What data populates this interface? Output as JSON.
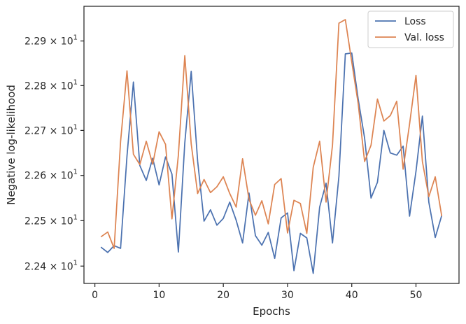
{
  "chart_data": {
    "type": "line",
    "xlabel": "Epochs",
    "ylabel": "Negative log-likelihood",
    "y_scale": "log",
    "xlim": [
      -1.7,
      56.7
    ],
    "ylim": [
      2.2362,
      2.2978
    ],
    "x_ticks": [
      0,
      10,
      20,
      30,
      40,
      50
    ],
    "x_tick_labels": [
      "0",
      "10",
      "20",
      "30",
      "40",
      "50"
    ],
    "y_ticks": [
      2.24,
      2.25,
      2.26,
      2.27,
      2.28,
      2.29
    ],
    "y_tick_mantissas": [
      "2.24",
      "2.25",
      "2.26",
      "2.27",
      "2.28",
      "2.29"
    ],
    "y_tick_base": "10",
    "y_tick_exp": "1",
    "grid": false,
    "legend_position": "top-right",
    "x": [
      1,
      2,
      3,
      4,
      5,
      6,
      7,
      8,
      9,
      10,
      11,
      12,
      13,
      14,
      15,
      16,
      17,
      18,
      19,
      20,
      21,
      22,
      23,
      24,
      25,
      26,
      27,
      28,
      29,
      30,
      31,
      32,
      33,
      34,
      35,
      36,
      37,
      38,
      39,
      40,
      41,
      42,
      43,
      44,
      45,
      46,
      47,
      48,
      49,
      50,
      51,
      52,
      53,
      54
    ],
    "series": [
      {
        "name": "Loss",
        "color": "#4c72b0",
        "values": [
          2.2441,
          2.243,
          2.2445,
          2.2439,
          2.2643,
          2.2808,
          2.2622,
          2.2589,
          2.2638,
          2.2579,
          2.2641,
          2.2603,
          2.2431,
          2.2672,
          2.2832,
          2.2632,
          2.2499,
          2.2524,
          2.249,
          2.2505,
          2.2541,
          2.2501,
          2.2451,
          2.2561,
          2.2467,
          2.2446,
          2.2474,
          2.2417,
          2.2506,
          2.2517,
          2.239,
          2.2472,
          2.2462,
          2.2384,
          2.253,
          2.2583,
          2.2451,
          2.2598,
          2.2871,
          2.2873,
          2.277,
          2.2683,
          2.255,
          2.2585,
          2.27,
          2.265,
          2.2645,
          2.2665,
          2.251,
          2.2609,
          2.2732,
          2.2541,
          2.2463,
          2.2511
        ]
      },
      {
        "name": "Val. loss",
        "color": "#dd8452",
        "values": [
          2.2465,
          2.2475,
          2.2439,
          2.2675,
          2.2833,
          2.2647,
          2.2624,
          2.2676,
          2.2625,
          2.2697,
          2.2669,
          2.2504,
          2.2645,
          2.2867,
          2.267,
          2.256,
          2.2591,
          2.2562,
          2.2575,
          2.2597,
          2.256,
          2.253,
          2.2637,
          2.2547,
          2.2512,
          2.2544,
          2.2493,
          2.258,
          2.2593,
          2.2473,
          2.2545,
          2.2538,
          2.2472,
          2.2618,
          2.2676,
          2.2541,
          2.2667,
          2.294,
          2.2948,
          2.2853,
          2.276,
          2.2631,
          2.2667,
          2.277,
          2.2721,
          2.2733,
          2.2765,
          2.2614,
          2.2714,
          2.2823,
          2.2631,
          2.2553,
          2.2597,
          2.2511
        ]
      }
    ]
  }
}
